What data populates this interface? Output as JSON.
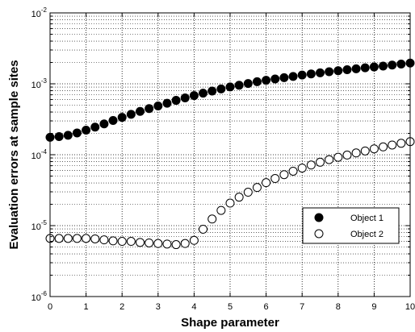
{
  "chart_data": {
    "type": "scatter",
    "title": "",
    "xlabel": "Shape parameter",
    "ylabel": "Evaluation errors at sample sites",
    "xlim": [
      0,
      10
    ],
    "ylim": [
      1e-06,
      0.01
    ],
    "yscale": "log",
    "grid": true,
    "legend_position": "bottom-right",
    "x_ticks": [
      0,
      1,
      2,
      3,
      4,
      5,
      6,
      7,
      8,
      9,
      10
    ],
    "y_ticks": [
      {
        "base": "10",
        "exp": "-6",
        "value": 1e-06
      },
      {
        "base": "10",
        "exp": "-5",
        "value": 1e-05
      },
      {
        "base": "10",
        "exp": "-4",
        "value": 0.0001
      },
      {
        "base": "10",
        "exp": "-3",
        "value": 0.001
      },
      {
        "base": "10",
        "exp": "-2",
        "value": 0.01
      }
    ],
    "x": [
      0,
      0.25,
      0.5,
      0.75,
      1,
      1.25,
      1.5,
      1.75,
      2,
      2.25,
      2.5,
      2.75,
      3,
      3.25,
      3.5,
      3.75,
      4,
      4.25,
      4.5,
      4.75,
      5,
      5.25,
      5.5,
      5.75,
      6,
      6.25,
      6.5,
      6.75,
      7,
      7.25,
      7.5,
      7.75,
      8,
      8.25,
      8.5,
      8.75,
      9,
      9.25,
      9.5,
      9.75,
      10
    ],
    "series": [
      {
        "name": "Object 1",
        "marker": "filled-circle",
        "color": "#000000",
        "values": [
          0.000176,
          0.00018,
          0.000188,
          0.000203,
          0.000222,
          0.000245,
          0.000272,
          0.000304,
          0.000336,
          0.000371,
          0.000408,
          0.000447,
          0.000487,
          0.000532,
          0.000584,
          0.000633,
          0.000683,
          0.000737,
          0.00079,
          0.000847,
          0.000903,
          0.000954,
          0.00101,
          0.00107,
          0.00112,
          0.00117,
          0.00122,
          0.00127,
          0.00133,
          0.00138,
          0.00143,
          0.00148,
          0.00153,
          0.00158,
          0.00163,
          0.00168,
          0.00173,
          0.00178,
          0.00184,
          0.0019,
          0.00196
        ]
      },
      {
        "name": "Object 2",
        "marker": "open-circle",
        "color": "#000000",
        "values": [
          6.6e-06,
          6.6e-06,
          6.6e-06,
          6.6e-06,
          6.6e-06,
          6.5e-06,
          6.3e-06,
          6.1e-06,
          6e-06,
          6e-06,
          5.8e-06,
          5.7e-06,
          5.6e-06,
          5.5e-06,
          5.4e-06,
          5.6e-06,
          6.2e-06,
          8.9e-06,
          1.24e-05,
          1.64e-05,
          2.08e-05,
          2.52e-05,
          2.96e-05,
          3.45e-05,
          4.04e-05,
          4.62e-05,
          5.24e-05,
          5.85e-05,
          6.48e-05,
          7.16e-05,
          7.84e-05,
          8.52e-05,
          9.2e-05,
          9.9e-05,
          0.000106,
          0.000113,
          0.000121,
          0.000129,
          0.000137,
          0.000145,
          0.000153
        ]
      }
    ]
  }
}
